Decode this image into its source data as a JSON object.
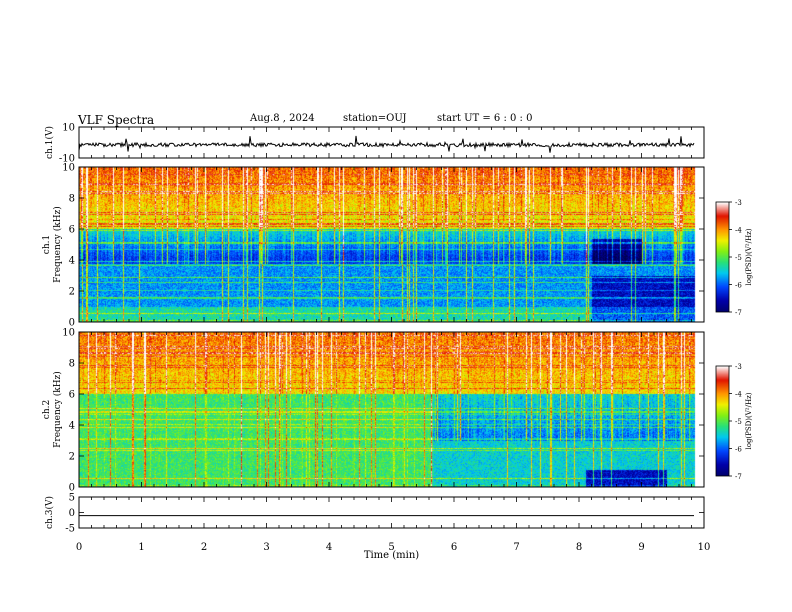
{
  "header": {
    "title": "VLF Spectra",
    "date": "Aug.8 , 2024",
    "station": "station=OUJ",
    "start_ut": "start UT = 6 : 0 : 0"
  },
  "colorbar": {
    "label": "log(PSD)(V²/Hz)",
    "ticks": [
      "-3",
      "-4",
      "-5",
      "-6",
      "-7"
    ],
    "colors": [
      "#ffffff",
      "#e00000",
      "#ff9a00",
      "#f8f000",
      "#20e000",
      "#00e0c0",
      "#0060ff",
      "#0000a0",
      "#000060"
    ]
  },
  "chart_data": [
    {
      "type": "line",
      "panel": "ch1-waveform",
      "ylabel": "ch.1(V)",
      "ylim": [
        -10,
        10
      ],
      "yticks": [
        "10",
        "-10"
      ],
      "xlim": [
        0,
        10
      ],
      "baseline_v": -1.5,
      "end_min": 9.85
    },
    {
      "type": "heatmap",
      "panel": "ch1-spectrogram",
      "ylabel": "ch.1\nFrequency (kHz)",
      "ylim": [
        0,
        10
      ],
      "yticks": [
        "0",
        "2",
        "4",
        "6",
        "8",
        "10"
      ],
      "xlim": [
        0,
        10
      ],
      "data_end_min": 9.85
    },
    {
      "type": "heatmap",
      "panel": "ch2-spectrogram",
      "ylabel": "ch.2\nFrequency (kHz)",
      "ylim": [
        0,
        10
      ],
      "yticks": [
        "0",
        "2",
        "4",
        "6",
        "8",
        "10"
      ],
      "xlim": [
        0,
        10
      ],
      "data_end_min": 9.85
    },
    {
      "type": "line",
      "panel": "ch3-waveform",
      "ylabel": "ch.3(V)",
      "ylim": [
        -5,
        5
      ],
      "yticks": [
        "5",
        "0",
        "-5"
      ],
      "xlim": [
        0,
        10
      ],
      "baseline_v": -1.0,
      "end_min": 9.85
    }
  ],
  "xaxis": {
    "label": "Time (min)",
    "ticks": [
      "0",
      "1",
      "2",
      "3",
      "4",
      "5",
      "6",
      "7",
      "8",
      "9",
      "10"
    ]
  }
}
